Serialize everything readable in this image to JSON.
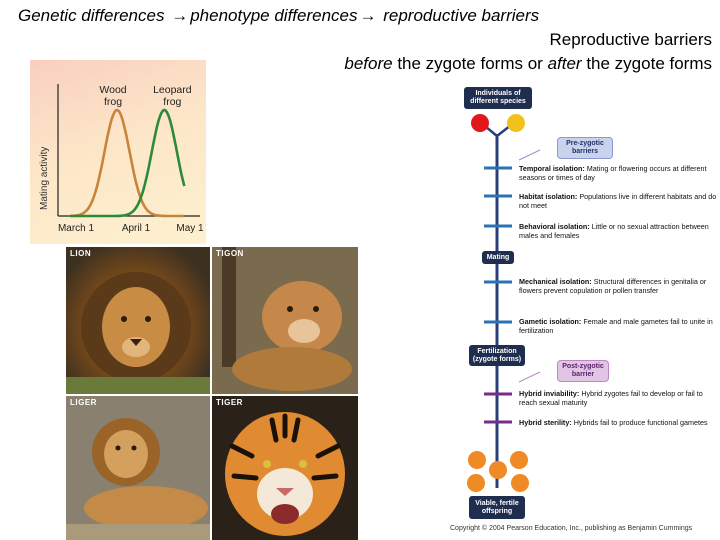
{
  "heading": {
    "line1_a": "Genetic differences",
    "line1_b": "phenotype differences",
    "line1_c": "reproductive barriers",
    "line2": "Reproductive barriers",
    "line3_before": "before",
    "line3_mid": "the zygote forms or",
    "line3_after": "after",
    "line3_end": "the zygote forms"
  },
  "chart_data": {
    "type": "line",
    "ylabel": "Mating activity",
    "x_ticks": [
      "March 1",
      "April 1",
      "May 1"
    ],
    "series": [
      {
        "name": "Wood frog",
        "color": "#c8843a",
        "peak_x": 0.72,
        "values_desc": "bell curve peaking early April"
      },
      {
        "name": "Leopard frog",
        "color": "#2e8a3a",
        "peak_x": 1.55,
        "values_desc": "bell curve peaking mid/late April"
      }
    ],
    "series_labels": [
      [
        "Wood",
        "frog"
      ],
      [
        "Leopard",
        "frog"
      ]
    ]
  },
  "photos": {
    "lion": "LION",
    "tigon": "TIGON",
    "liger": "LIGER",
    "tiger": "TIGER"
  },
  "flow": {
    "start": "Individuals of different species",
    "pre_zygotic": "Pre-zygotic barriers",
    "mating": "Mating",
    "fertilization": "Fertilization (zygote forms)",
    "post_zygotic": "Post-zygotic barrier",
    "end": "Viable, fertile offspring",
    "colors": {
      "box": "#1f2d4f",
      "trunk": "#2a3f7a",
      "pre_tick": "#2b72b4",
      "post_tick": "#7a2a8a",
      "parent_a": "#e3161c",
      "parent_b": "#f2c21c",
      "offspring": "#f08a24"
    },
    "pre_steps": [
      {
        "title": "Temporal isolation:",
        "text": "Mating or flowering occurs at different seasons or times of day"
      },
      {
        "title": "Habitat isolation:",
        "text": "Populations live in different habitats and do not meet"
      },
      {
        "title": "Behavioral isolation:",
        "text": "Little or no sexual attraction between males and females"
      },
      {
        "title": "Mechanical isolation:",
        "text": "Structural differences in genitalia or flowers prevent copulation or pollen transfer"
      },
      {
        "title": "Gametic isolation:",
        "text": "Female and male gametes fail to unite in fertilization"
      }
    ],
    "post_steps": [
      {
        "title": "Hybrid inviability:",
        "text": "Hybrid zygotes fail to develop or fail to reach sexual maturity"
      },
      {
        "title": "Hybrid sterility:",
        "text": "Hybrids fail to produce functional gametes"
      }
    ]
  },
  "copyright": "Copyright © 2004 Pearson Education, Inc., publishing as Benjamin Cummings"
}
